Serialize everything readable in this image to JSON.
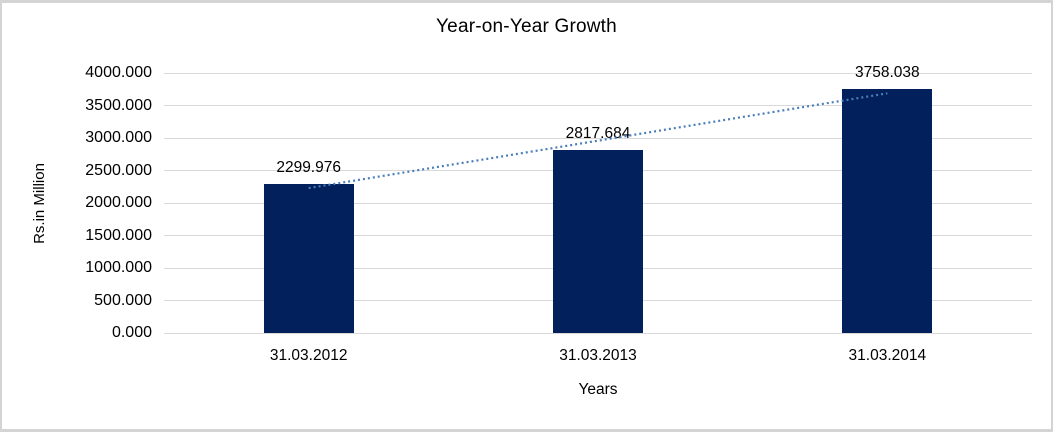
{
  "chart_data": {
    "type": "bar",
    "title": "Year-on-Year Growth",
    "categories": [
      "31.03.2012",
      "31.03.2013",
      "31.03.2014"
    ],
    "values": [
      2299.976,
      2817.684,
      3758.038
    ],
    "data_labels": [
      "2299.976",
      "2817.684",
      "3758.038"
    ],
    "xlabel": "Years",
    "ylabel": "Rs.in Million",
    "ylim": [
      0,
      4000
    ],
    "ytick_step": 500,
    "ytick_labels": [
      "0.000",
      "500.000",
      "1000.000",
      "1500.000",
      "2000.000",
      "2500.000",
      "3000.000",
      "3500.000",
      "4000.000"
    ],
    "grid": true,
    "legend_position": "none",
    "bar_color": "#02215C",
    "trendline": {
      "type": "linear",
      "style": "dotted",
      "color": "#4A7EBB"
    },
    "gridline_color": "#D9D9D9",
    "text_color": "#000000",
    "frame_border_color": "#D4D4D4",
    "background": "#FFFFFF"
  }
}
